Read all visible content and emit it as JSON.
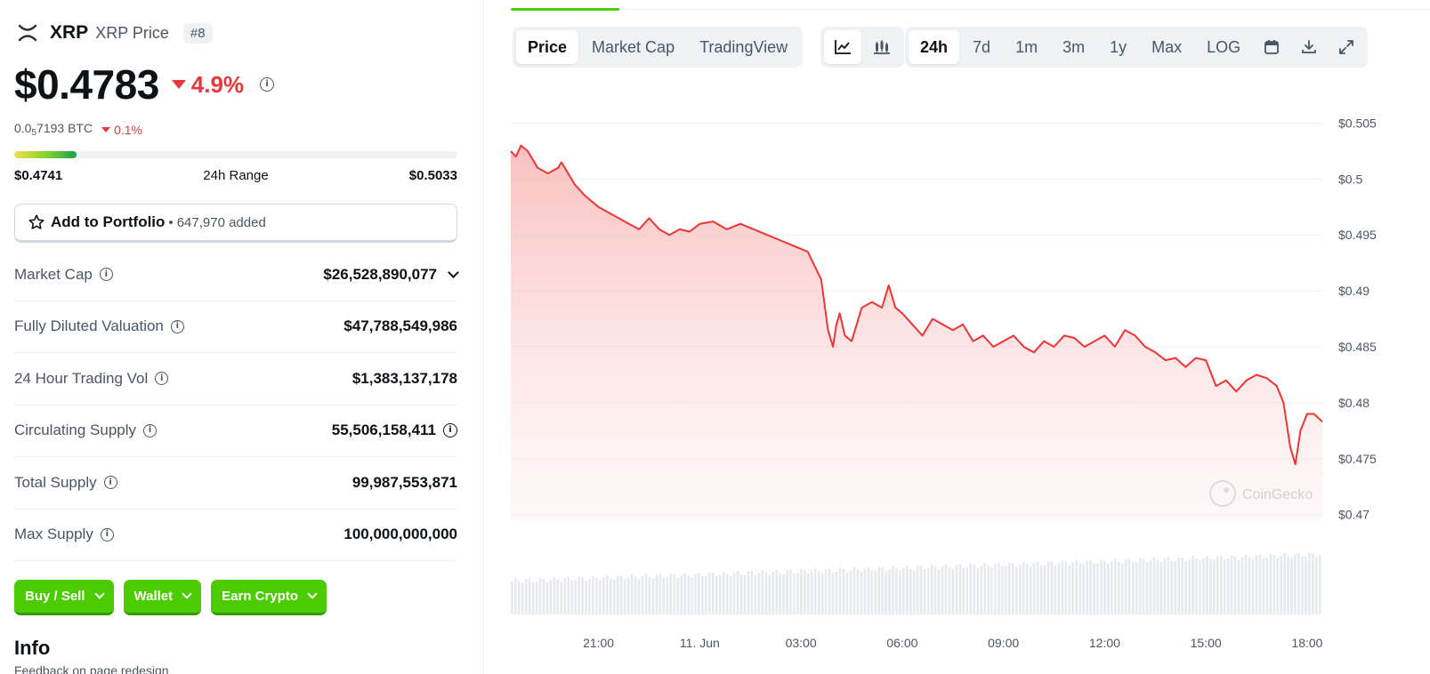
{
  "coin": {
    "symbol": "XRP",
    "name": "XRP Price",
    "rank": "#8",
    "price": "$0.4783",
    "change_24h": "4.9%",
    "btc_price_prefix": "0.0",
    "btc_price_sub": "5",
    "btc_price_rest": "7193 BTC",
    "btc_change": "0.1%"
  },
  "range": {
    "low": "$0.4741",
    "label": "24h Range",
    "high": "$0.5033",
    "position": 0.14
  },
  "portfolio": {
    "label": "Add to Portfolio",
    "separator": "•",
    "count": "647,970 added"
  },
  "stats": [
    {
      "label": "Market Cap",
      "value": "$26,528,890,077"
    },
    {
      "label": "Fully Diluted Valuation",
      "value": "$47,788,549,986"
    },
    {
      "label": "24 Hour Trading Vol",
      "value": "$1,383,137,178"
    },
    {
      "label": "Circulating Supply",
      "value": "55,506,158,411"
    },
    {
      "label": "Total Supply",
      "value": "99,987,553,871"
    },
    {
      "label": "Max Supply",
      "value": "100,000,000,000"
    }
  ],
  "actions": {
    "buy_sell": "Buy / Sell",
    "wallet": "Wallet",
    "earn": "Earn Crypto"
  },
  "info": {
    "title": "Info",
    "feedback": "Feedback on page redesign"
  },
  "chart_tabs": {
    "price": "Price",
    "market_cap": "Market Cap",
    "tradingview": "TradingView"
  },
  "chart_icons": [
    "line-chart-icon",
    "candlestick-icon"
  ],
  "ranges": [
    "24h",
    "7d",
    "1m",
    "3m",
    "1y",
    "Max",
    "LOG"
  ],
  "tool_icons": [
    "calendar-icon",
    "download-icon",
    "fullscreen-icon"
  ],
  "watermark": "CoinGecko",
  "colors": {
    "accent_green": "#4bcc00",
    "down_red": "#e5383b",
    "line_red": "#f03434"
  },
  "chart_data": {
    "type": "area",
    "title": "",
    "xlabel": "",
    "ylabel": "",
    "y_ticks": [
      0.505,
      0.5,
      0.495,
      0.49,
      0.485,
      0.48,
      0.475,
      0.47
    ],
    "y_tick_labels": [
      "$0.505",
      "$0.5",
      "$0.495",
      "$0.49",
      "$0.485",
      "$0.48",
      "$0.475",
      "$0.47"
    ],
    "ylim": [
      0.4695,
      0.5075
    ],
    "x_tick_labels": [
      "21:00",
      "11. Jun",
      "03:00",
      "06:00",
      "09:00",
      "12:00",
      "15:00",
      "18:00"
    ],
    "x_tick_hours": [
      21,
      24,
      27,
      30,
      33,
      36,
      39,
      42
    ],
    "xlim_hours": [
      18.4,
      42.45
    ],
    "series": [
      {
        "x_hours": [
          18.4,
          18.55,
          18.7,
          18.9,
          19.2,
          19.5,
          19.8,
          19.9,
          20.3,
          20.6,
          21.0,
          21.3,
          21.6,
          21.9,
          22.2,
          22.5,
          22.8,
          23.1,
          23.4,
          23.7,
          24.0,
          24.4,
          24.8,
          25.2,
          25.6,
          26.0,
          26.4,
          26.8,
          27.2,
          27.6,
          27.8,
          27.95,
          28.05,
          28.15,
          28.3,
          28.5,
          28.8,
          29.1,
          29.4,
          29.6,
          29.8,
          30.0,
          30.3,
          30.6,
          30.9,
          31.2,
          31.5,
          31.8,
          32.1,
          32.4,
          32.7,
          33.0,
          33.3,
          33.6,
          33.9,
          34.2,
          34.5,
          34.8,
          35.1,
          35.4,
          35.7,
          36.0,
          36.3,
          36.6,
          36.9,
          37.2,
          37.5,
          37.8,
          38.1,
          38.4,
          38.7,
          39.0,
          39.3,
          39.6,
          39.9,
          40.2,
          40.5,
          40.8,
          41.1,
          41.3,
          41.5,
          41.65,
          41.8,
          42.0,
          42.2,
          42.45
        ],
        "y": [
          0.5025,
          0.502,
          0.503,
          0.5025,
          0.501,
          0.5005,
          0.501,
          0.5015,
          0.4995,
          0.4985,
          0.4975,
          0.497,
          0.4965,
          0.496,
          0.4955,
          0.4965,
          0.4955,
          0.495,
          0.4955,
          0.4953,
          0.496,
          0.4962,
          0.4955,
          0.496,
          0.4955,
          0.495,
          0.4945,
          0.494,
          0.4935,
          0.491,
          0.4865,
          0.485,
          0.487,
          0.488,
          0.486,
          0.4855,
          0.4885,
          0.489,
          0.4885,
          0.4905,
          0.4885,
          0.488,
          0.487,
          0.486,
          0.4875,
          0.487,
          0.4865,
          0.487,
          0.4855,
          0.486,
          0.485,
          0.4855,
          0.486,
          0.485,
          0.4845,
          0.4855,
          0.485,
          0.486,
          0.4858,
          0.485,
          0.4855,
          0.486,
          0.485,
          0.4865,
          0.486,
          0.485,
          0.4845,
          0.4838,
          0.484,
          0.4832,
          0.484,
          0.4838,
          0.4815,
          0.482,
          0.481,
          0.482,
          0.4825,
          0.4822,
          0.4815,
          0.48,
          0.476,
          0.4745,
          0.4775,
          0.479,
          0.479,
          0.4783
        ]
      }
    ],
    "volume_series": {
      "values_rel": "approx_constant_rising",
      "start": 0.42,
      "end": 0.75
    },
    "grid": true
  }
}
